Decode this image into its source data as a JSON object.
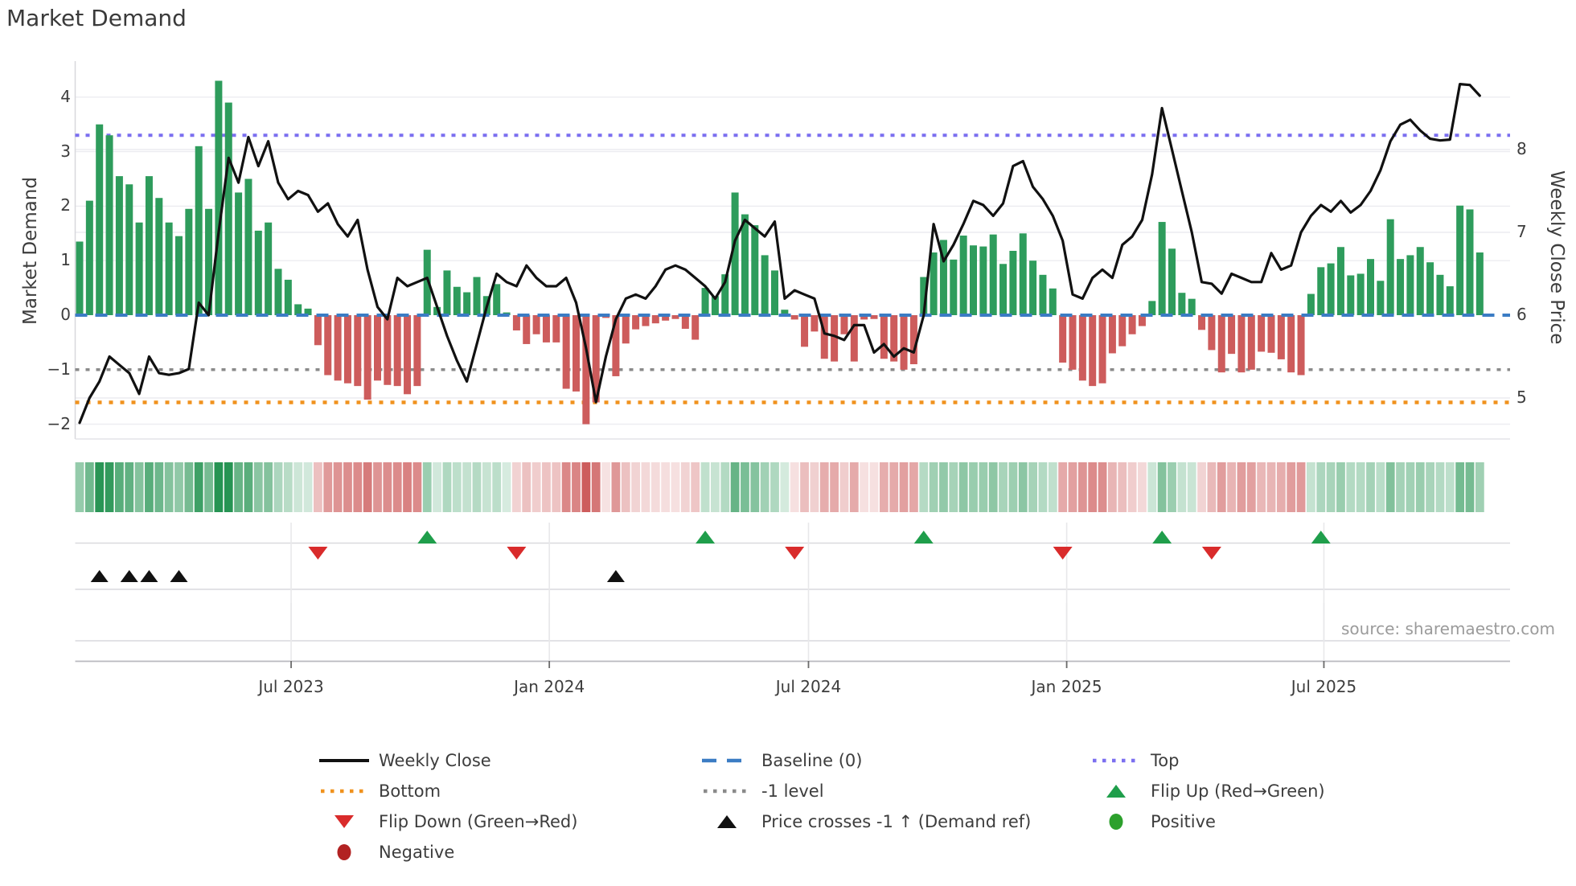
{
  "title": "Market Demand",
  "source": "source: sharemaestro.com",
  "y_left": {
    "label": "Market Demand",
    "ticks": [
      "4",
      "3",
      "2",
      "1",
      "0",
      "−1",
      "−2"
    ],
    "tick_values": [
      4,
      3,
      2,
      1,
      0,
      -1,
      -2
    ]
  },
  "y_right": {
    "label": "Weekly Close Price",
    "ticks": [
      "8",
      "7",
      "6",
      "5"
    ],
    "tick_values": [
      8,
      7,
      6,
      5
    ]
  },
  "colors": {
    "bar_positive": "#2e9c5c",
    "bar_negative": "#cd5c5c",
    "price_line": "#111111",
    "baseline": "#3b7cc4",
    "top_line": "#7b6ff0",
    "bottom_line": "#f0921e",
    "minus1_line": "#8a8a8a",
    "flip_up": "#1f9e4b",
    "flip_down": "#d92b2b",
    "price_cross": "#111111",
    "positive_dot": "#2ca02c",
    "negative_dot": "#b22222",
    "grid": "#ececf0",
    "panel_line": "#d9d9de",
    "axis_line": "#b9b9bf"
  },
  "chart_data": {
    "type": "combo-bar-line",
    "x_axis": {
      "tick_labels": [
        "Jul 2023",
        "Jan 2024",
        "Jul 2024",
        "Jan 2025",
        "Jul 2025"
      ],
      "tick_weeks": [
        21.3,
        47.3,
        73.4,
        99.4,
        125.3
      ],
      "n_weeks": 142
    },
    "ylim_left": [
      -2.35,
      4.55
    ],
    "ylim_right": [
      5.0,
      8.9
    ],
    "reference_lines": {
      "baseline": 0,
      "top": 3.3,
      "minus_one": -1,
      "bottom": -1.6
    },
    "series": [
      {
        "name": "Market Demand",
        "type": "bar",
        "axis": "left",
        "values": [
          1.35,
          2.1,
          3.5,
          3.3,
          2.55,
          2.4,
          1.7,
          2.55,
          2.15,
          1.7,
          1.45,
          1.95,
          3.1,
          1.95,
          4.3,
          3.9,
          2.25,
          2.5,
          1.55,
          1.7,
          0.85,
          0.65,
          0.2,
          0.12,
          -0.55,
          -1.1,
          -1.2,
          -1.25,
          -1.3,
          -1.55,
          -1.2,
          -1.28,
          -1.3,
          -1.45,
          -1.3,
          1.2,
          0.15,
          0.82,
          0.52,
          0.42,
          0.7,
          0.35,
          0.57,
          0.05,
          -0.28,
          -0.53,
          -0.35,
          -0.5,
          -0.5,
          -1.35,
          -1.4,
          -2.0,
          -1.6,
          -0.05,
          -1.12,
          -0.52,
          -0.26,
          -0.2,
          -0.15,
          -0.1,
          -0.07,
          -0.25,
          -0.45,
          0.5,
          0.35,
          0.75,
          2.25,
          1.85,
          1.65,
          1.1,
          0.82,
          0.1,
          -0.08,
          -0.58,
          -0.3,
          -0.8,
          -0.85,
          -0.35,
          -0.85,
          -0.08,
          -0.07,
          -0.8,
          -0.85,
          -1.0,
          -0.9,
          0.7,
          1.15,
          1.38,
          1.02,
          1.46,
          1.28,
          1.26,
          1.48,
          0.94,
          1.18,
          1.5,
          1.0,
          0.74,
          0.49,
          -0.87,
          -1.0,
          -1.2,
          -1.3,
          -1.25,
          -0.7,
          -0.57,
          -0.35,
          -0.2,
          0.26,
          1.71,
          1.22,
          0.41,
          0.3,
          -0.27,
          -0.64,
          -1.05,
          -0.71,
          -1.05,
          -1.0,
          -0.67,
          -0.69,
          -0.81,
          -1.05,
          -1.1,
          0.39,
          0.88,
          0.95,
          1.25,
          0.73,
          0.76,
          1.03,
          0.63,
          1.76,
          1.03,
          1.1,
          1.25,
          0.97,
          0.74,
          0.53,
          2.01,
          1.94,
          1.15
        ]
      },
      {
        "name": "Weekly Close",
        "type": "line",
        "axis": "right",
        "values": [
          4.7,
          5.0,
          5.2,
          5.5,
          5.4,
          5.3,
          5.05,
          5.5,
          5.3,
          5.28,
          5.3,
          5.35,
          6.15,
          6.0,
          7.0,
          7.9,
          7.6,
          8.15,
          7.8,
          8.1,
          7.6,
          7.4,
          7.5,
          7.45,
          7.25,
          7.35,
          7.1,
          6.95,
          7.15,
          6.55,
          6.1,
          5.95,
          6.45,
          6.35,
          6.4,
          6.45,
          6.1,
          5.75,
          5.45,
          5.2,
          5.65,
          6.1,
          6.5,
          6.4,
          6.35,
          6.6,
          6.45,
          6.35,
          6.35,
          6.45,
          6.15,
          5.6,
          4.95,
          5.5,
          5.95,
          6.2,
          6.25,
          6.2,
          6.35,
          6.55,
          6.6,
          6.55,
          6.45,
          6.35,
          6.2,
          6.4,
          6.9,
          7.15,
          7.05,
          6.95,
          7.13,
          6.2,
          6.3,
          6.25,
          6.2,
          5.78,
          5.75,
          5.7,
          5.88,
          5.88,
          5.55,
          5.65,
          5.5,
          5.6,
          5.55,
          6.0,
          7.1,
          6.65,
          6.85,
          7.1,
          7.38,
          7.33,
          7.2,
          7.35,
          7.8,
          7.86,
          7.55,
          7.4,
          7.2,
          6.9,
          6.25,
          6.2,
          6.45,
          6.55,
          6.45,
          6.85,
          6.95,
          7.15,
          7.7,
          8.5,
          8.0,
          7.5,
          7.0,
          6.4,
          6.38,
          6.26,
          6.5,
          6.45,
          6.4,
          6.4,
          6.75,
          6.55,
          6.6,
          7.0,
          7.2,
          7.33,
          7.25,
          7.38,
          7.24,
          7.33,
          7.5,
          7.75,
          8.1,
          8.3,
          8.36,
          8.23,
          8.13,
          8.11,
          8.12,
          8.79,
          8.78,
          8.65
        ]
      }
    ],
    "heat_strip": {
      "description": "per-week color cells, green intensity = positive demand, red intensity = negative demand"
    },
    "markers": {
      "flip_up_weeks": [
        35,
        63,
        85,
        109,
        125
      ],
      "flip_down_weeks": [
        24,
        44,
        72,
        99,
        114
      ],
      "price_cross_weeks": [
        2,
        5,
        7,
        10,
        54
      ]
    }
  },
  "legend": {
    "rows": [
      [
        {
          "kind": "line-solid",
          "color_key": "price_line",
          "label": "Weekly Close"
        },
        {
          "kind": "line-dashed",
          "color_key": "baseline",
          "label": "Baseline (0)"
        },
        {
          "kind": "line-dotted",
          "color_key": "top_line",
          "label": "Top"
        }
      ],
      [
        {
          "kind": "line-dotted",
          "color_key": "bottom_line",
          "label": "Bottom"
        },
        {
          "kind": "line-dotted",
          "color_key": "minus1_line",
          "label": "-1 level"
        },
        {
          "kind": "tri-up",
          "color_key": "flip_up",
          "label": "Flip Up (Red→Green)"
        }
      ],
      [
        {
          "kind": "tri-down",
          "color_key": "flip_down",
          "label": "Flip Down (Green→Red)"
        },
        {
          "kind": "tri-up",
          "color_key": "price_cross",
          "label": "Price crosses -1 ↑ (Demand ref)"
        },
        {
          "kind": "dot",
          "color_key": "positive_dot",
          "label": "Positive"
        }
      ],
      [
        {
          "kind": "dot",
          "color_key": "negative_dot",
          "label": "Negative"
        }
      ]
    ]
  }
}
